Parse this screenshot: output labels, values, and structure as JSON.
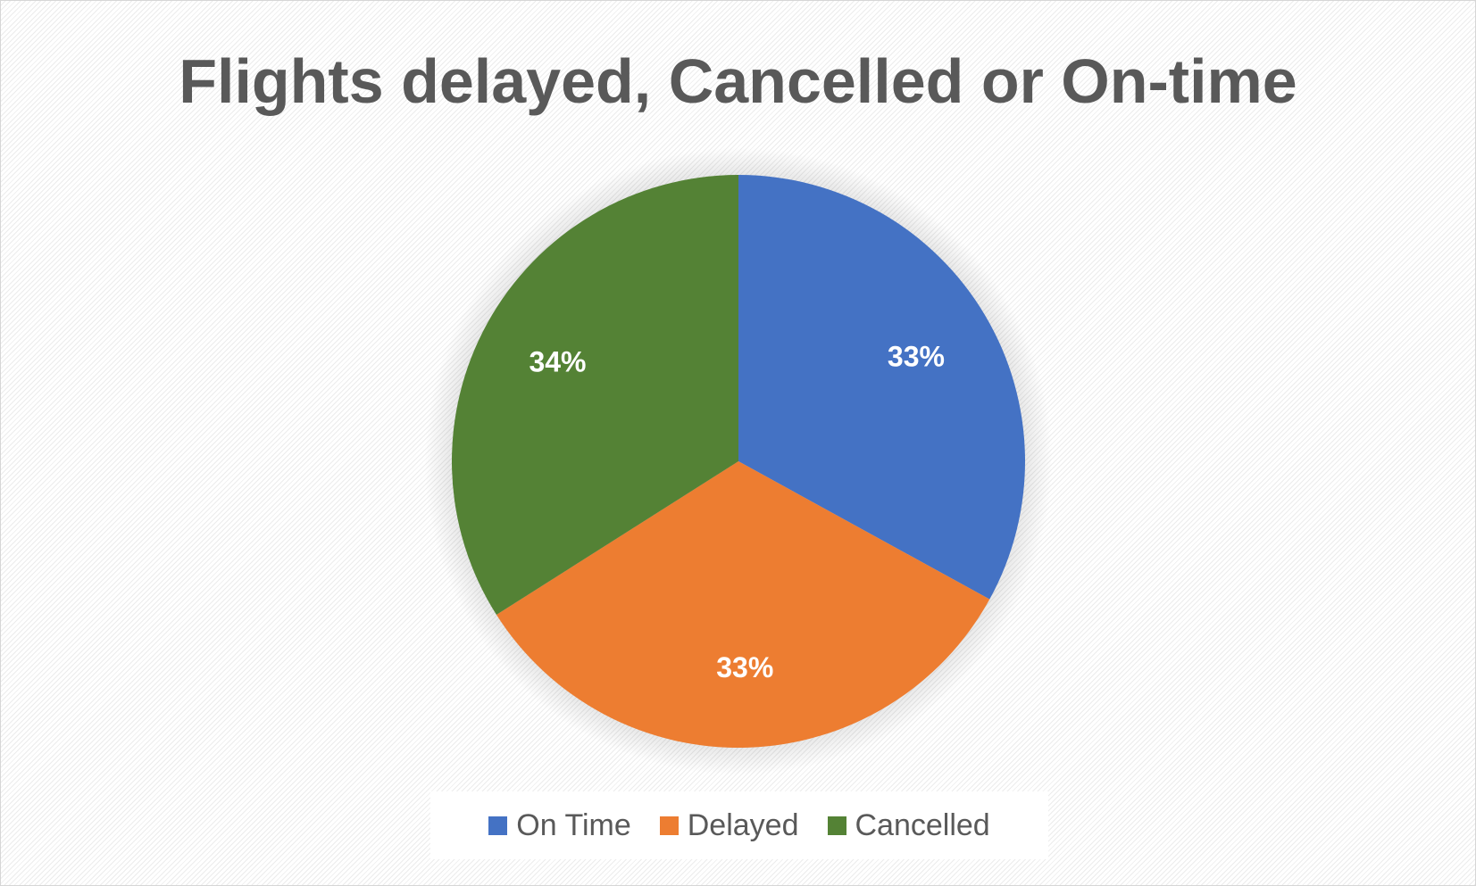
{
  "chart_data": {
    "type": "pie",
    "title": "Flights delayed, Cancelled or On-time",
    "categories": [
      "On Time",
      "Delayed",
      "Cancelled"
    ],
    "values": [
      33,
      33,
      34
    ],
    "labels": [
      "33%",
      "33%",
      "34%"
    ],
    "colors": [
      "#4472C4",
      "#ED7D31",
      "#548235"
    ],
    "legend_position": "bottom"
  }
}
